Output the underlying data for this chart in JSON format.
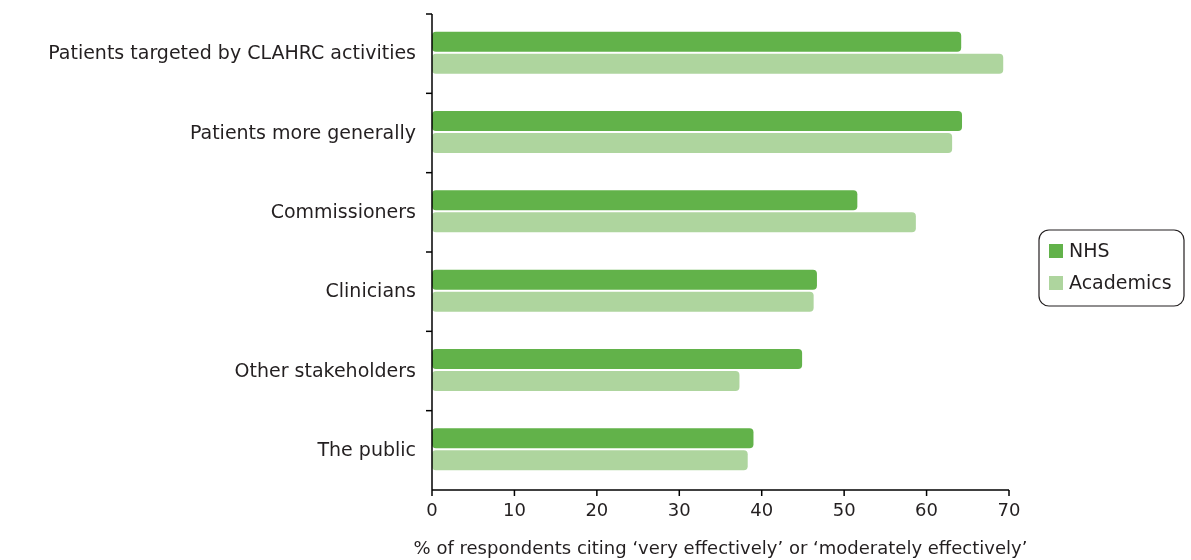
{
  "chart_data": {
    "type": "bar",
    "orientation": "horizontal",
    "categories": [
      "Patients targeted by CLAHRC activities",
      "Patients more generally",
      "Commissioners",
      "Clinicians",
      "Other stakeholders",
      "The public"
    ],
    "series": [
      {
        "name": "NHS",
        "color": "#62b24a",
        "values": [
          64.2,
          64.3,
          51.6,
          46.7,
          44.9,
          39.0
        ]
      },
      {
        "name": "Academics",
        "color": "#aed59e",
        "values": [
          69.3,
          63.1,
          58.7,
          46.3,
          37.3,
          38.3
        ]
      }
    ],
    "xlabel": "% of respondents citing ‘very effectively’ or ‘moderately effectively’",
    "xlim": [
      0,
      70
    ],
    "xticks": [
      0,
      10,
      20,
      30,
      40,
      50,
      60,
      70
    ],
    "legend": "right"
  }
}
